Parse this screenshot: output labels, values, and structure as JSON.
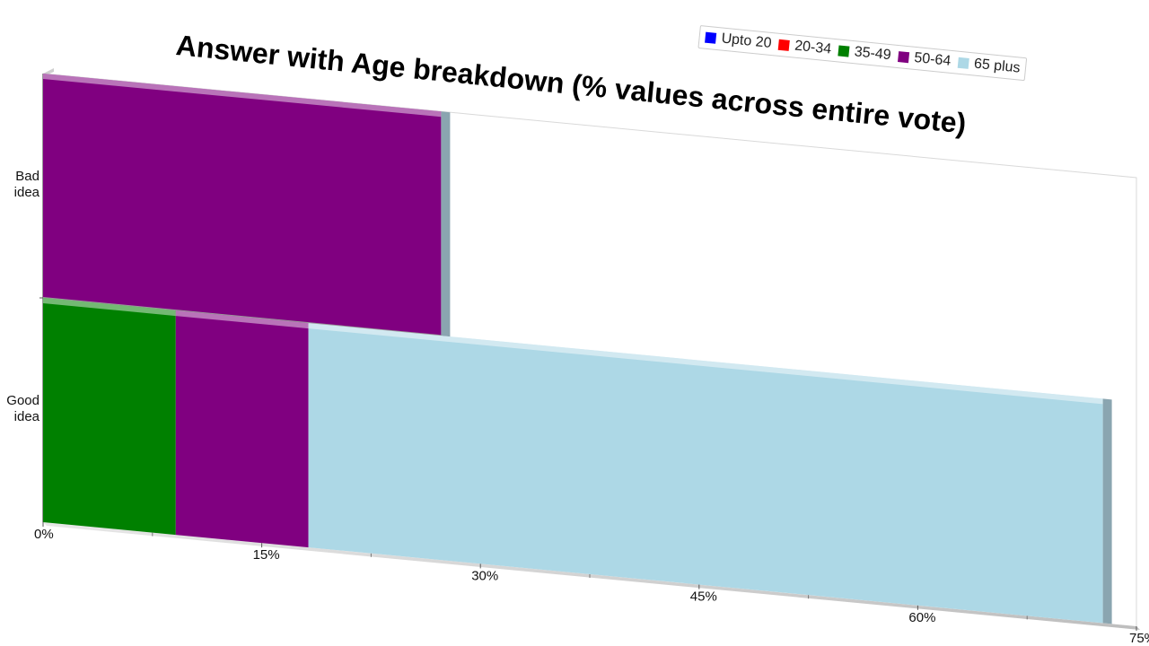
{
  "chart_data": {
    "type": "bar",
    "orientation": "horizontal",
    "stacked": true,
    "title": "Answer with Age breakdown (% values across entire vote)",
    "xlabel": "",
    "ylabel": "",
    "xlim": [
      0,
      75
    ],
    "x_tick_labels": [
      "0%",
      "15%",
      "30%",
      "45%",
      "60%",
      "75%"
    ],
    "x_tick_values": [
      0,
      15,
      30,
      45,
      60,
      75
    ],
    "categories": [
      "Bad idea",
      "Good idea"
    ],
    "category_lines": [
      [
        "Bad",
        "idea"
      ],
      [
        "Good",
        "idea"
      ]
    ],
    "series": [
      {
        "name": "Upto 20",
        "color": "#0000ff",
        "values": [
          0,
          0
        ]
      },
      {
        "name": "20-34",
        "color": "#ff0000",
        "values": [
          0,
          0
        ]
      },
      {
        "name": "35-49",
        "color": "#008000",
        "values": [
          0,
          9.1
        ]
      },
      {
        "name": "50-64",
        "color": "#800080",
        "values": [
          27.3,
          9.1
        ]
      },
      {
        "name": "65 plus",
        "color": "#add8e6",
        "values": [
          0,
          54.5
        ]
      }
    ],
    "legend_position": "top-right",
    "grid": false
  }
}
